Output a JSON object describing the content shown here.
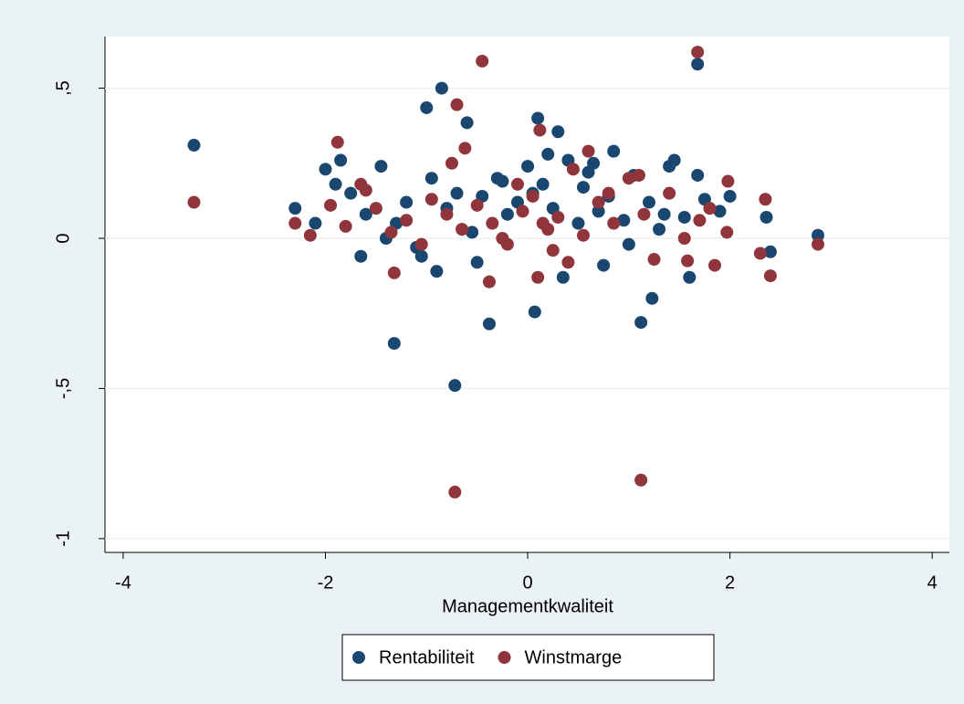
{
  "chart_data": {
    "type": "scatter",
    "xlabel": "Managementkwaliteit",
    "xlim": [
      -4.18,
      4.17
    ],
    "xticks": [
      -4,
      -2,
      0,
      2,
      4
    ],
    "ylim": [
      -1.046,
      0.672
    ],
    "yticks": [
      {
        "value": -1,
        "label": "-1"
      },
      {
        "value": -0.5,
        "label": "-,5"
      },
      {
        "value": 0,
        "label": "0"
      },
      {
        "value": 0.5,
        "label": ",5"
      }
    ],
    "grid": true,
    "legend": "bottom",
    "series": [
      {
        "name": "Rentabiliteit",
        "color": "#1a476f",
        "x": [
          -3.3,
          -0.85,
          -1.0,
          0.1,
          0.3,
          -0.6,
          1.68,
          1.68,
          -0.72,
          -1.32,
          -0.38,
          0.07,
          1.12,
          1.23,
          2.87,
          2.36,
          2.4,
          1.6,
          -1.85,
          -2.0,
          1.45,
          0.85,
          -2.3,
          -2.1,
          -1.9,
          -1.75,
          -1.6,
          -1.45,
          -1.3,
          -1.2,
          -1.1,
          -0.95,
          -0.8,
          -0.7,
          -0.55,
          -0.45,
          -0.3,
          -0.2,
          -0.1,
          0.0,
          0.15,
          0.25,
          0.4,
          0.5,
          0.6,
          0.7,
          0.8,
          0.95,
          1.05,
          1.2,
          1.3,
          1.4,
          1.55,
          1.75,
          1.9,
          2.0,
          -1.4,
          -0.9,
          -0.5,
          0.05,
          0.35,
          0.65,
          1.0,
          -1.05,
          0.2,
          0.55,
          -0.25,
          0.75,
          1.35,
          -1.65
        ],
        "values": [
          0.31,
          0.5,
          0.435,
          0.4,
          0.355,
          0.385,
          0.58,
          0.21,
          -0.49,
          -0.35,
          -0.285,
          -0.245,
          -0.28,
          -0.2,
          0.01,
          0.07,
          -0.045,
          -0.13,
          0.26,
          0.23,
          0.26,
          0.29,
          0.1,
          0.05,
          0.18,
          0.15,
          0.08,
          0.24,
          0.05,
          0.12,
          -0.03,
          0.2,
          0.1,
          0.15,
          0.02,
          0.14,
          0.2,
          0.08,
          0.12,
          0.24,
          0.18,
          0.1,
          0.26,
          0.05,
          0.22,
          0.09,
          0.14,
          0.06,
          0.21,
          0.12,
          0.03,
          0.24,
          0.07,
          0.13,
          0.09,
          0.14,
          0.0,
          -0.11,
          -0.08,
          0.15,
          -0.13,
          0.25,
          -0.02,
          -0.06,
          0.28,
          0.17,
          0.19,
          -0.09,
          0.08,
          -0.06
        ]
      },
      {
        "name": "Winstmarge",
        "color": "#90353b",
        "x": [
          -3.3,
          -0.45,
          1.68,
          -0.7,
          -1.88,
          -0.62,
          0.12,
          -0.72,
          1.12,
          2.4,
          2.87,
          2.35,
          1.98,
          -0.38,
          0.1,
          -1.32,
          1.58,
          -2.3,
          -2.15,
          -1.95,
          -1.8,
          -1.65,
          -1.5,
          -1.35,
          -1.2,
          -1.05,
          -0.95,
          -0.8,
          -0.65,
          -0.5,
          -0.35,
          -0.2,
          -0.05,
          0.05,
          0.2,
          0.3,
          0.45,
          0.55,
          0.7,
          0.85,
          1.0,
          1.15,
          1.25,
          1.4,
          1.55,
          1.7,
          1.85,
          1.97,
          2.3,
          -0.1,
          0.6,
          1.1,
          -1.6,
          0.25,
          0.8,
          -0.75,
          0.4,
          1.8,
          -0.25,
          0.15
        ],
        "values": [
          0.12,
          0.59,
          0.62,
          0.445,
          0.32,
          0.3,
          0.36,
          -0.845,
          -0.805,
          -0.125,
          -0.02,
          0.13,
          0.19,
          -0.145,
          -0.13,
          -0.115,
          -0.075,
          0.05,
          0.01,
          0.11,
          0.04,
          0.18,
          0.1,
          0.02,
          0.06,
          -0.02,
          0.13,
          0.08,
          0.03,
          0.11,
          0.05,
          -0.02,
          0.09,
          0.14,
          0.03,
          0.07,
          0.23,
          0.01,
          0.12,
          0.05,
          0.2,
          0.08,
          -0.07,
          0.15,
          0.0,
          0.06,
          -0.09,
          0.02,
          -0.05,
          0.18,
          0.29,
          0.21,
          0.16,
          -0.04,
          0.15,
          0.25,
          -0.08,
          0.1,
          0.0,
          0.05
        ]
      }
    ]
  }
}
